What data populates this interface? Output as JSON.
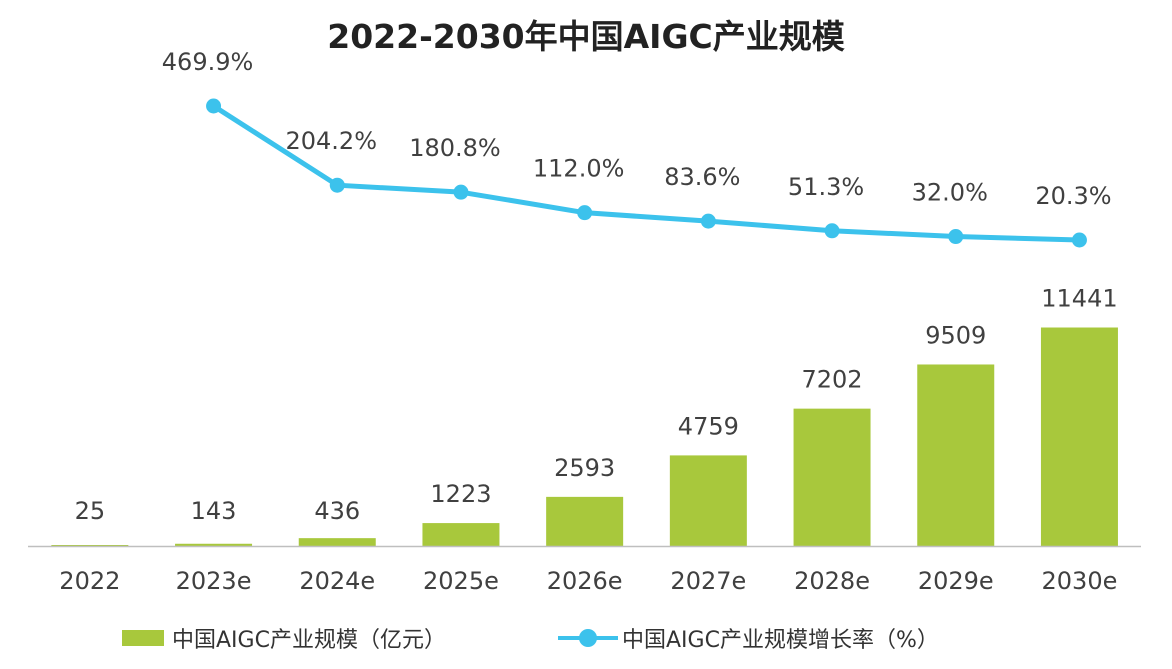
{
  "chart_data": {
    "type": "bar",
    "title": "2022-2030年中国AIGC产业规模",
    "categories": [
      "2022",
      "2023e",
      "2024e",
      "2025e",
      "2026e",
      "2027e",
      "2028e",
      "2029e",
      "2030e"
    ],
    "series": [
      {
        "name": "中国AIGC产业规模（亿元）",
        "type": "bar",
        "values": [
          25,
          143,
          436,
          1223,
          2593,
          4759,
          7202,
          9509,
          11441
        ],
        "labels": [
          "25",
          "143",
          "436",
          "1223",
          "2593",
          "4759",
          "7202",
          "9509",
          "11441"
        ],
        "color": "#a8c83c"
      },
      {
        "name": "中国AIGC产业规模增长率（%）",
        "type": "line",
        "values": [
          null,
          469.9,
          204.2,
          180.8,
          112.0,
          83.6,
          51.3,
          32.0,
          20.3
        ],
        "labels": [
          "",
          "469.9%",
          "204.2%",
          "180.8%",
          "112.0%",
          "83.6%",
          "51.3%",
          "32.0%",
          "20.3%"
        ],
        "color": "#3cc2ec"
      }
    ],
    "xlabel": "",
    "ylabel": "",
    "grid": false,
    "legend_position": "bottom"
  },
  "colors": {
    "axis": "#bfbfbf",
    "text": "#404040"
  }
}
